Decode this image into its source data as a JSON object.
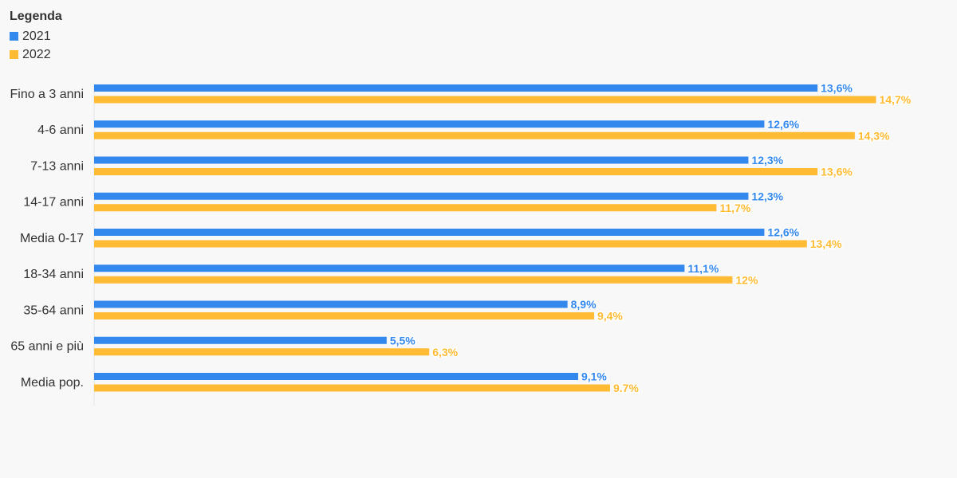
{
  "legend": {
    "title": "Legenda",
    "items": [
      {
        "label": "2021",
        "color": "#3388ee"
      },
      {
        "label": "2022",
        "color": "#ffbb33"
      }
    ]
  },
  "chart_data": {
    "type": "bar",
    "orientation": "horizontal",
    "title": "",
    "xlabel": "",
    "ylabel": "",
    "categories": [
      "Fino a 3 anni",
      "4-6 anni",
      "7-13 anni",
      "14-17 anni",
      "Media 0-17",
      "18-34 anni",
      "35-64 anni",
      "65 anni e più",
      "Media pop."
    ],
    "series": [
      {
        "name": "2021",
        "color": "#3388ee",
        "values": [
          13.6,
          12.6,
          12.3,
          12.3,
          12.6,
          11.1,
          8.9,
          5.5,
          9.1
        ],
        "labels": [
          "13,6%",
          "12,6%",
          "12,3%",
          "12,3%",
          "12,6%",
          "11,1%",
          "8,9%",
          "5,5%",
          "9,1%"
        ]
      },
      {
        "name": "2022",
        "color": "#ffbb33",
        "values": [
          14.7,
          14.3,
          13.6,
          11.7,
          13.4,
          12,
          9.4,
          6.3,
          9.7
        ],
        "labels": [
          "14,7%",
          "14,3%",
          "13,6%",
          "11,7%",
          "13,4%",
          "12%",
          "9,4%",
          "6,3%",
          "9.7%"
        ]
      }
    ],
    "xlim": [
      0,
      16
    ],
    "grid": false,
    "legend_position": "top-left"
  }
}
